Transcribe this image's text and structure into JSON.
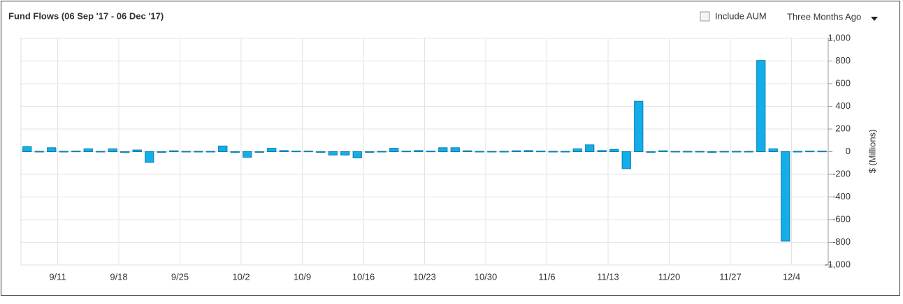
{
  "controls": {
    "checkbox_label": "Include AUM",
    "dropdown_label": "Three Months Ago"
  },
  "chart_data": {
    "type": "bar",
    "title": "Fund Flows (06 Sep '17 - 06 Dec '17)",
    "y_label": "$ (Millions)",
    "categories": [
      null,
      null,
      null,
      "9/11",
      null,
      null,
      null,
      null,
      "9/18",
      null,
      null,
      null,
      null,
      "9/25",
      null,
      null,
      null,
      null,
      "10/2",
      null,
      null,
      null,
      null,
      "10/9",
      null,
      null,
      null,
      null,
      "10/16",
      null,
      null,
      null,
      null,
      "10/23",
      null,
      null,
      null,
      null,
      "10/30",
      null,
      null,
      null,
      null,
      "11/6",
      null,
      null,
      null,
      null,
      "11/13",
      null,
      null,
      null,
      null,
      "11/20",
      null,
      null,
      null,
      null,
      "11/27",
      null,
      null,
      null,
      null,
      "12/4",
      null,
      null
    ],
    "values": [
      45,
      3,
      35,
      3,
      5,
      25,
      3,
      25,
      -8,
      15,
      -95,
      -5,
      8,
      3,
      3,
      3,
      50,
      -8,
      -50,
      -5,
      30,
      10,
      5,
      5,
      -3,
      -30,
      -30,
      -55,
      -5,
      3,
      30,
      5,
      10,
      5,
      35,
      35,
      8,
      3,
      3,
      3,
      8,
      10,
      5,
      3,
      3,
      25,
      60,
      10,
      20,
      -150,
      445,
      -5,
      8,
      3,
      3,
      3,
      0,
      3,
      3,
      3,
      805,
      25,
      -790,
      3,
      5,
      5
    ],
    "color": "#13aeea",
    "ylim": [
      -1000,
      1000
    ],
    "yticks": [
      {
        "value": -1000,
        "label": "-1,000"
      },
      -800,
      -600,
      -400,
      -200,
      0,
      200,
      400,
      600,
      800,
      {
        "value": 1000,
        "label": "1,000"
      }
    ],
    "grid": true
  }
}
